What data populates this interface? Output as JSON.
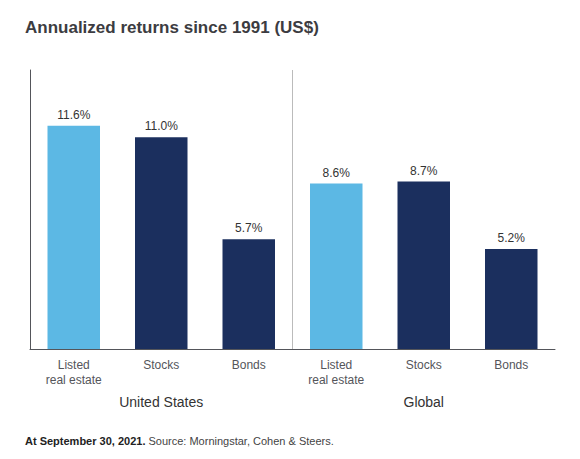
{
  "chart_data": {
    "type": "bar",
    "title": "Annualized returns since 1991 (US$)",
    "categories": [
      "Listed\nreal estate",
      "Stocks",
      "Bonds",
      "Listed\nreal estate",
      "Stocks",
      "Bonds"
    ],
    "values": [
      11.6,
      11.0,
      5.7,
      8.6,
      8.7,
      5.2
    ],
    "value_labels": [
      "11.6%",
      "11.0%",
      "5.7%",
      "8.6%",
      "8.7%",
      "5.2%"
    ],
    "colors": [
      "#5cb8e4",
      "#1b2f5e",
      "#1b2f5e",
      "#5cb8e4",
      "#1b2f5e",
      "#1b2f5e"
    ],
    "groups": [
      {
        "label": "United States",
        "size": 3
      },
      {
        "label": "Global",
        "size": 3
      }
    ],
    "footnote": [
      "At September 30, 2021.",
      " Source: Morningstar, Cohen & Steers."
    ],
    "ylim": [
      0,
      14.5
    ],
    "yticks": [],
    "tick_labels": "x",
    "data_labels": true,
    "grid": false
  }
}
